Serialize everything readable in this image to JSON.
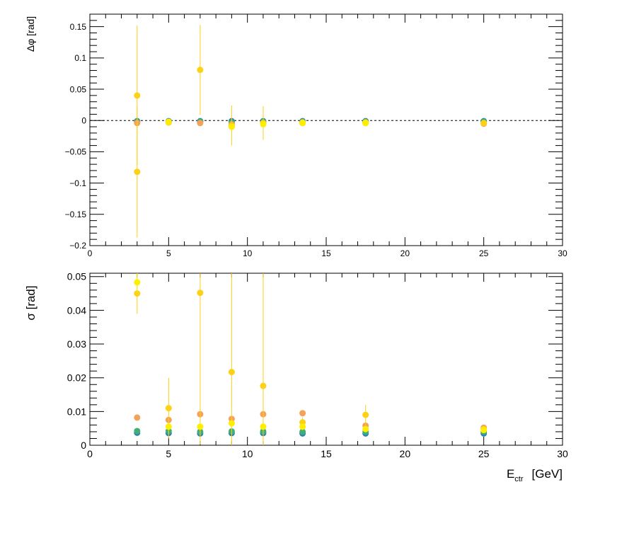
{
  "chart_data": [
    {
      "type": "scatter",
      "ylabel": "Δφ  [rad]",
      "xlim": [
        0,
        30
      ],
      "ylim": [
        -0.2,
        0.17
      ],
      "x_ticks": [
        "0",
        "5",
        "10",
        "15",
        "20",
        "25",
        "30"
      ],
      "y_ticks": [
        "−0.2",
        "−0.15",
        "−0.1",
        "−0.05",
        "0",
        "0.05",
        "0.1",
        "0.15"
      ],
      "reference_line": 0,
      "series": [
        {
          "color": "#2c7fb8",
          "points": [
            [
              3,
              -0.001,
              0.001
            ],
            [
              5,
              -0.001,
              0.001
            ],
            [
              7,
              -0.001,
              0.001
            ],
            [
              9,
              -0.001,
              0.001
            ],
            [
              11,
              -0.001,
              0.001
            ],
            [
              13.5,
              -0.001,
              0.001
            ],
            [
              17.5,
              -0.001,
              0.001
            ],
            [
              25,
              -0.001,
              0.001
            ]
          ]
        },
        {
          "color": "#41ae76",
          "points": [
            [
              3,
              -0.002,
              0.001
            ],
            [
              5,
              -0.002,
              0.001
            ],
            [
              7,
              -0.002,
              0.001
            ],
            [
              9,
              -0.003,
              0.002
            ],
            [
              11,
              -0.002,
              0.002
            ],
            [
              13.5,
              -0.002,
              0.001
            ],
            [
              17.5,
              -0.002,
              0.001
            ],
            [
              25,
              -0.002,
              0.001
            ]
          ]
        },
        {
          "color": "#f4a259",
          "points": [
            [
              3,
              -0.004,
              0.002
            ],
            [
              5,
              -0.003,
              0.002
            ],
            [
              7,
              -0.004,
              0.002
            ],
            [
              9,
              -0.006,
              0.004
            ],
            [
              11,
              -0.005,
              0.004
            ],
            [
              13.5,
              -0.004,
              0.002
            ],
            [
              17.5,
              -0.004,
              0.002
            ],
            [
              25,
              -0.005,
              0.002
            ]
          ]
        },
        {
          "color": "#fcd116",
          "points": [
            [
              3,
              0.04,
              0.112
            ],
            [
              3,
              -0.082,
              0.105
            ],
            [
              5,
              -0.003,
              0.003
            ],
            [
              7,
              0.081,
              0.072
            ],
            [
              9,
              -0.008,
              0.032
            ],
            [
              11,
              -0.004,
              0.027
            ],
            [
              13.5,
              -0.003,
              0.004
            ],
            [
              17.5,
              -0.003,
              0.004
            ],
            [
              25,
              -0.004,
              0.003
            ]
          ]
        },
        {
          "color": "#ffee00",
          "points": [
            [
              5,
              -0.002,
              0.002
            ],
            [
              9,
              -0.01,
              0.005
            ],
            [
              11,
              -0.006,
              0.004
            ],
            [
              13.5,
              -0.004,
              0.002
            ],
            [
              17.5,
              -0.004,
              0.002
            ]
          ]
        }
      ]
    },
    {
      "type": "scatter",
      "ylabel": "σ  [rad]",
      "xlabel_main": "E",
      "xlabel_sub": "ctr",
      "xlabel_unit": "[GeV]",
      "xlim": [
        0,
        30
      ],
      "ylim": [
        0,
        0.051
      ],
      "x_ticks": [
        "0",
        "5",
        "10",
        "15",
        "20",
        "25",
        "30"
      ],
      "y_ticks": [
        "0",
        "0.01",
        "0.02",
        "0.03",
        "0.04",
        "0.05"
      ],
      "series": [
        {
          "color": "#2c7fb8",
          "points": [
            [
              3,
              0.0037,
              0.0003
            ],
            [
              5,
              0.0036,
              0.0003
            ],
            [
              7,
              0.0035,
              0.0003
            ],
            [
              9,
              0.0036,
              0.0003
            ],
            [
              11,
              0.0036,
              0.0003
            ],
            [
              13.5,
              0.0035,
              0.0003
            ],
            [
              17.5,
              0.0035,
              0.0003
            ],
            [
              25,
              0.0035,
              0.0003
            ]
          ]
        },
        {
          "color": "#41ae76",
          "points": [
            [
              3,
              0.0042,
              0.0004
            ],
            [
              5,
              0.0042,
              0.0004
            ],
            [
              7,
              0.004,
              0.0004
            ],
            [
              9,
              0.0041,
              0.0004
            ],
            [
              11,
              0.0041,
              0.0004
            ],
            [
              13.5,
              0.004,
              0.0004
            ],
            [
              17.5,
              0.004,
              0.0004
            ],
            [
              25,
              0.004,
              0.0004
            ]
          ]
        },
        {
          "color": "#f4a259",
          "points": [
            [
              3,
              0.0082,
              0.0008
            ],
            [
              5,
              0.0075,
              0.0008
            ],
            [
              7,
              0.0092,
              0.0009
            ],
            [
              9,
              0.0078,
              0.0008
            ],
            [
              11,
              0.0092,
              0.0009
            ],
            [
              13.5,
              0.0095,
              0.0009
            ],
            [
              17.5,
              0.0058,
              0.0006
            ],
            [
              25,
              0.0052,
              0.0005
            ]
          ]
        },
        {
          "color": "#fcd116",
          "points": [
            [
              3,
              0.045,
              0.006
            ],
            [
              5,
              0.011,
              0.009
            ],
            [
              7,
              0.0452,
              0.045
            ],
            [
              9,
              0.0217,
              0.03
            ],
            [
              11,
              0.0176,
              0.035
            ],
            [
              13.5,
              0.0068,
              0.0015
            ],
            [
              17.5,
              0.009,
              0.003
            ],
            [
              25,
              0.0048,
              0.0008
            ]
          ]
        },
        {
          "color": "#ffee00",
          "points": [
            [
              3,
              0.0483,
              0.003
            ],
            [
              5,
              0.0055,
              0.001
            ],
            [
              7,
              0.0055,
              0.001
            ],
            [
              9,
              0.0065,
              0.001
            ],
            [
              11,
              0.0055,
              0.001
            ],
            [
              13.5,
              0.0055,
              0.001
            ],
            [
              17.5,
              0.0048,
              0.001
            ],
            [
              25,
              0.0045,
              0.0005
            ]
          ]
        }
      ]
    }
  ]
}
